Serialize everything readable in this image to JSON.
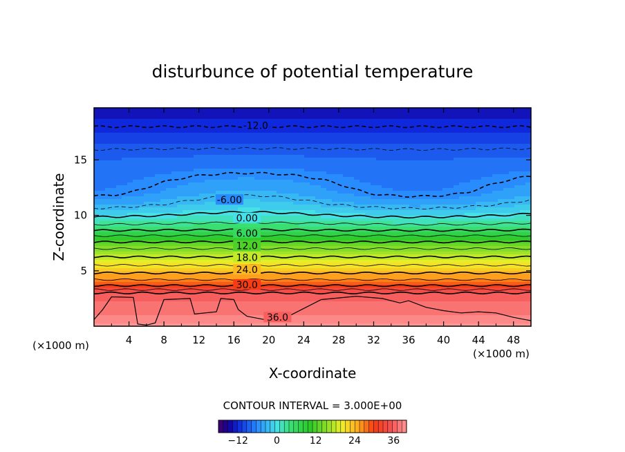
{
  "chart_data": {
    "type": "heatmap",
    "title": "disturbunce of potential temperature",
    "xlabel": "X-coordinate",
    "ylabel": "Z-coordinate",
    "x_unit_left": "(×1000 m)",
    "x_unit_right": "(×1000 m)",
    "xlim": [
      0,
      50
    ],
    "ylim": [
      0,
      19.7
    ],
    "x_ticks": [
      4,
      8,
      12,
      16,
      20,
      24,
      28,
      32,
      36,
      40,
      44,
      48
    ],
    "y_ticks": [
      5,
      10,
      15
    ],
    "contour_interval_text": "CONTOUR INTERVAL = 3.000E+00",
    "colorbar": {
      "min": -18,
      "max": 40,
      "ticks": [
        -12,
        0,
        12,
        24,
        36
      ]
    },
    "profile": [
      [
        0,
        40
      ],
      [
        1,
        38
      ],
      [
        2,
        37
      ],
      [
        3,
        36
      ],
      [
        3.5,
        31
      ],
      [
        4,
        28
      ],
      [
        5,
        23
      ],
      [
        6,
        19
      ],
      [
        7,
        15
      ],
      [
        8,
        10
      ],
      [
        9,
        4
      ],
      [
        10,
        0
      ],
      [
        11,
        -3
      ],
      [
        12,
        -5
      ],
      [
        14,
        -7
      ],
      [
        16,
        -9
      ],
      [
        18,
        -12
      ],
      [
        19.7,
        -14
      ]
    ],
    "contour_labels": [
      {
        "text": "-12.0",
        "x": 18.5,
        "z": 18.1,
        "dashed": true
      },
      {
        "text": "-6.00",
        "x": 15.5,
        "z": 11.4,
        "dashed": true
      },
      {
        "text": "0.00",
        "x": 17.5,
        "z": 9.75
      },
      {
        "text": "6.00",
        "x": 17.5,
        "z": 8.4
      },
      {
        "text": "12.0",
        "x": 17.5,
        "z": 7.25
      },
      {
        "text": "18.0",
        "x": 17.5,
        "z": 6.2
      },
      {
        "text": "24.0",
        "x": 17.5,
        "z": 5.1
      },
      {
        "text": "30.0",
        "x": 17.5,
        "z": 3.75
      },
      {
        "text": "36.0",
        "x": 21.0,
        "z": 0.8
      }
    ]
  }
}
